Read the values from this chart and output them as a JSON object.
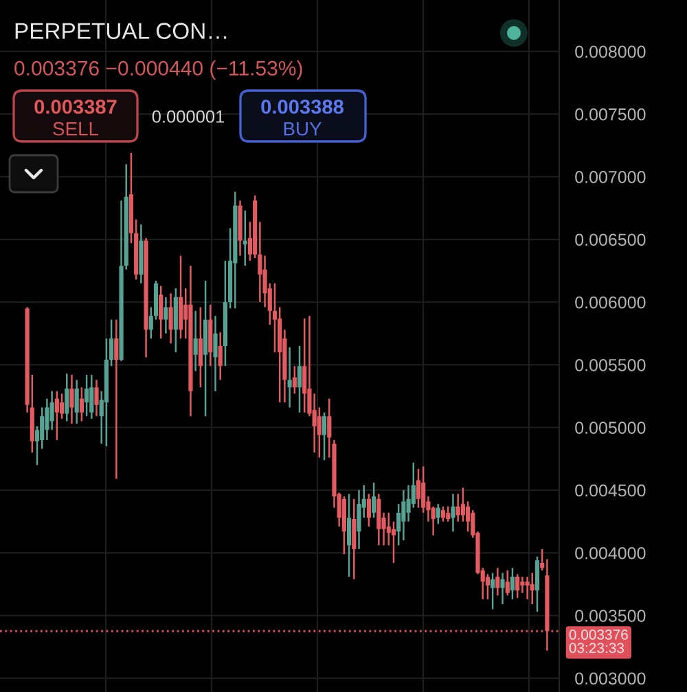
{
  "chart_data": {
    "type": "candlestick",
    "title": "PERPETUAL CON…",
    "subtitle": "0.003376 −0.000440 (−11.53%)",
    "annotations": [
      "0.003387",
      "SELL",
      "0.000001",
      "0.003388",
      "BUY"
    ],
    "categories": [
      null,
      null,
      null,
      null,
      null,
      null,
      null,
      null,
      null,
      null,
      null,
      null,
      null,
      null,
      null,
      null,
      null,
      null,
      null,
      null,
      null,
      null,
      null,
      null,
      null,
      null,
      null,
      null,
      null,
      null,
      null,
      null,
      null,
      null,
      null,
      null,
      null,
      null,
      null,
      null,
      null,
      null,
      null,
      null,
      null,
      null,
      null,
      null,
      null,
      null,
      null,
      null,
      null,
      null,
      null,
      null,
      null,
      null,
      null,
      null,
      null,
      null,
      null,
      null,
      null,
      null,
      null,
      null,
      null,
      null,
      null,
      null,
      null,
      null,
      null,
      null,
      null,
      null,
      null,
      null,
      null,
      null,
      null,
      null,
      null,
      null,
      null,
      null,
      null,
      null,
      null,
      null,
      null,
      null,
      null,
      null,
      null,
      null,
      null,
      null,
      null,
      null,
      null,
      null,
      null,
      null
    ],
    "ohlc": [
      [
        0.00595,
        0.00596,
        0.00512,
        0.00518
      ],
      [
        0.00516,
        0.00542,
        0.0048,
        0.00489
      ],
      [
        0.00489,
        0.00501,
        0.0047,
        0.00498
      ],
      [
        0.0049,
        0.00516,
        0.00483,
        0.00509
      ],
      [
        0.00498,
        0.00523,
        0.0049,
        0.00516
      ],
      [
        0.00505,
        0.00529,
        0.00498,
        0.0052
      ],
      [
        0.00523,
        0.00529,
        0.0049,
        0.00512
      ],
      [
        0.0052,
        0.00527,
        0.00507,
        0.00511
      ],
      [
        0.00511,
        0.00543,
        0.00505,
        0.00531
      ],
      [
        0.00531,
        0.00542,
        0.00503,
        0.00516
      ],
      [
        0.00512,
        0.00538,
        0.00503,
        0.00531
      ],
      [
        0.00523,
        0.00532,
        0.00505,
        0.00512
      ],
      [
        0.0052,
        0.00542,
        0.00509,
        0.00531
      ],
      [
        0.00512,
        0.00542,
        0.00507,
        0.00532
      ],
      [
        0.00532,
        0.00538,
        0.00509,
        0.00518
      ],
      [
        0.00509,
        0.00529,
        0.00487,
        0.00522
      ],
      [
        0.0052,
        0.00571,
        0.00485,
        0.00554
      ],
      [
        0.00554,
        0.00586,
        0.00549,
        0.00571
      ],
      [
        0.00571,
        0.00586,
        0.00459,
        0.00554
      ],
      [
        0.00554,
        0.00681,
        0.00553,
        0.00629
      ],
      [
        0.00629,
        0.0071,
        0.00626,
        0.00684
      ],
      [
        0.00686,
        0.00719,
        0.00647,
        0.00655
      ],
      [
        0.00655,
        0.00666,
        0.00618,
        0.00622
      ],
      [
        0.00622,
        0.00662,
        0.00615,
        0.00649
      ],
      [
        0.00649,
        0.00651,
        0.00556,
        0.00578
      ],
      [
        0.00578,
        0.00596,
        0.00571,
        0.00589
      ],
      [
        0.00589,
        0.00617,
        0.00586,
        0.00615
      ],
      [
        0.00606,
        0.00613,
        0.00571,
        0.00586
      ],
      [
        0.00586,
        0.00604,
        0.00575,
        0.00596
      ],
      [
        0.00596,
        0.00607,
        0.00567,
        0.00578
      ],
      [
        0.00578,
        0.00611,
        0.0056,
        0.00604
      ],
      [
        0.00604,
        0.00637,
        0.00571,
        0.00578
      ],
      [
        0.00598,
        0.00611,
        0.00571,
        0.00586
      ],
      [
        0.00598,
        0.00629,
        0.00509,
        0.00529
      ],
      [
        0.00558,
        0.00593,
        0.00545,
        0.00571
      ],
      [
        0.00571,
        0.00596,
        0.00532,
        0.00549
      ],
      [
        0.00558,
        0.00617,
        0.00509,
        0.00586
      ],
      [
        0.00586,
        0.00598,
        0.00549,
        0.0056
      ],
      [
        0.00556,
        0.00589,
        0.00529,
        0.00575
      ],
      [
        0.00565,
        0.00576,
        0.00538,
        0.00549
      ],
      [
        0.00565,
        0.00633,
        0.00549,
        0.006
      ],
      [
        0.006,
        0.00659,
        0.00595,
        0.00633
      ],
      [
        0.00631,
        0.00688,
        0.00595,
        0.00677
      ],
      [
        0.00677,
        0.00681,
        0.00637,
        0.00649
      ],
      [
        0.00646,
        0.00673,
        0.00629,
        0.00649
      ],
      [
        0.00651,
        0.00664,
        0.00633,
        0.00638
      ],
      [
        0.00681,
        0.00685,
        0.00635,
        0.00638
      ],
      [
        0.00638,
        0.00664,
        0.006,
        0.00622
      ],
      [
        0.00626,
        0.00637,
        0.00596,
        0.00607
      ],
      [
        0.00611,
        0.00615,
        0.00582,
        0.00593
      ],
      [
        0.00593,
        0.00615,
        0.0056,
        0.00586
      ],
      [
        0.00587,
        0.00596,
        0.0052,
        0.0056
      ],
      [
        0.00571,
        0.00578,
        0.0052,
        0.00538
      ],
      [
        0.00532,
        0.00564,
        0.00516,
        0.00538
      ],
      [
        0.0054,
        0.00549,
        0.00527,
        0.00532
      ],
      [
        0.00532,
        0.00565,
        0.00512,
        0.00549
      ],
      [
        0.00549,
        0.00587,
        0.00512,
        0.00527
      ],
      [
        0.00531,
        0.00589,
        0.00509,
        0.00511
      ],
      [
        0.00514,
        0.00527,
        0.0048,
        0.00501
      ],
      [
        0.00509,
        0.00516,
        0.00476,
        0.00494
      ],
      [
        0.00494,
        0.00512,
        0.00474,
        0.00509
      ],
      [
        0.00509,
        0.00523,
        0.00476,
        0.00492
      ],
      [
        0.00487,
        0.0049,
        0.00436,
        0.00445
      ],
      [
        0.00447,
        0.00448,
        0.00421,
        0.00428
      ],
      [
        0.00443,
        0.00445,
        0.00399,
        0.00417
      ],
      [
        0.00406,
        0.00447,
        0.00381,
        0.00428
      ],
      [
        0.00427,
        0.00443,
        0.00379,
        0.00403
      ],
      [
        0.00417,
        0.0045,
        0.00403,
        0.00439
      ],
      [
        0.00436,
        0.00454,
        0.00428,
        0.00443
      ],
      [
        0.00443,
        0.00447,
        0.00421,
        0.00428
      ],
      [
        0.00432,
        0.00456,
        0.00428,
        0.00445
      ],
      [
        0.00443,
        0.00447,
        0.00406,
        0.00419
      ],
      [
        0.00428,
        0.00432,
        0.00406,
        0.00419
      ],
      [
        0.00421,
        0.00432,
        0.00406,
        0.00416
      ],
      [
        0.00419,
        0.00425,
        0.00392,
        0.00414
      ],
      [
        0.00417,
        0.00439,
        0.00406,
        0.00432
      ],
      [
        0.00425,
        0.0045,
        0.0041,
        0.00441
      ],
      [
        0.00432,
        0.00454,
        0.00425,
        0.00443
      ],
      [
        0.00439,
        0.00472,
        0.00436,
        0.00454
      ],
      [
        0.00458,
        0.00467,
        0.00436,
        0.00443
      ],
      [
        0.00456,
        0.00469,
        0.00432,
        0.00436
      ],
      [
        0.00441,
        0.00445,
        0.00425,
        0.00434
      ],
      [
        0.00436,
        0.00437,
        0.00414,
        0.00427
      ],
      [
        0.00428,
        0.00439,
        0.00423,
        0.00436
      ],
      [
        0.00434,
        0.00437,
        0.00425,
        0.00428
      ],
      [
        0.00432,
        0.00437,
        0.00425,
        0.00427
      ],
      [
        0.00428,
        0.00447,
        0.00417,
        0.00437
      ],
      [
        0.00437,
        0.00447,
        0.00425,
        0.0043
      ],
      [
        0.00439,
        0.00452,
        0.00425,
        0.0043
      ],
      [
        0.00437,
        0.00441,
        0.00417,
        0.00425
      ],
      [
        0.00432,
        0.00434,
        0.00412,
        0.00414
      ],
      [
        0.00416,
        0.00417,
        0.00383,
        0.00384
      ],
      [
        0.00386,
        0.00388,
        0.00363,
        0.00377
      ],
      [
        0.00381,
        0.00383,
        0.00363,
        0.00374
      ],
      [
        0.00372,
        0.00384,
        0.00355,
        0.00379
      ],
      [
        0.00381,
        0.00388,
        0.00366,
        0.00372
      ],
      [
        0.00372,
        0.00384,
        0.00359,
        0.00379
      ],
      [
        0.00377,
        0.00386,
        0.00366,
        0.00368
      ],
      [
        0.0037,
        0.00388,
        0.00363,
        0.00381
      ],
      [
        0.00381,
        0.00383,
        0.00364,
        0.0037
      ],
      [
        0.00377,
        0.00381,
        0.00368,
        0.00374
      ],
      [
        0.00377,
        0.00381,
        0.00363,
        0.00374
      ],
      [
        0.00375,
        0.00384,
        0.00359,
        0.0037
      ],
      [
        0.0037,
        0.00397,
        0.00353,
        0.00394
      ],
      [
        0.00392,
        0.00403,
        0.00386,
        0.00388
      ],
      [
        0.00382,
        0.00395,
        0.00322,
        0.003376
      ]
    ],
    "colors": [
      "#e25b60",
      "#e25b60",
      "#57a293",
      "#57a293",
      "#57a293",
      "#57a293",
      "#e25b60",
      "#e25b60",
      "#57a293",
      "#e25b60",
      "#57a293",
      "#e25b60",
      "#57a293",
      "#57a293",
      "#e25b60",
      "#57a293",
      "#57a293",
      "#57a293",
      "#e25b60",
      "#57a293",
      "#57a293",
      "#e25b60",
      "#e25b60",
      "#57a293",
      "#e25b60",
      "#57a293",
      "#57a293",
      "#e25b60",
      "#57a293",
      "#e25b60",
      "#57a293",
      "#e25b60",
      "#e25b60",
      "#e25b60",
      "#57a293",
      "#e25b60",
      "#57a293",
      "#e25b60",
      "#57a293",
      "#e25b60",
      "#57a293",
      "#57a293",
      "#57a293",
      "#e25b60",
      "#57a293",
      "#e25b60",
      "#e25b60",
      "#e25b60",
      "#e25b60",
      "#e25b60",
      "#e25b60",
      "#e25b60",
      "#e25b60",
      "#57a293",
      "#e25b60",
      "#57a293",
      "#e25b60",
      "#e25b60",
      "#e25b60",
      "#e25b60",
      "#57a293",
      "#e25b60",
      "#e25b60",
      "#e25b60",
      "#e25b60",
      "#57a293",
      "#e25b60",
      "#57a293",
      "#57a293",
      "#e25b60",
      "#57a293",
      "#e25b60",
      "#e25b60",
      "#e25b60",
      "#e25b60",
      "#57a293",
      "#57a293",
      "#57a293",
      "#57a293",
      "#e25b60",
      "#e25b60",
      "#e25b60",
      "#e25b60",
      "#57a293",
      "#e25b60",
      "#e25b60",
      "#57a293",
      "#e25b60",
      "#e25b60",
      "#e25b60",
      "#e25b60",
      "#e25b60",
      "#e25b60",
      "#e25b60",
      "#57a293",
      "#e25b60",
      "#57a293",
      "#e25b60",
      "#57a293",
      "#e25b60",
      "#e25b60",
      "#e25b60",
      "#e25b60",
      "#57a293",
      "#e25b60",
      "#e25b60"
    ],
    "ylim": [
      0.00289,
      0.00841
    ],
    "yticks": [
      {
        "value": 0.003,
        "label": "0.003000"
      },
      {
        "value": 0.0035,
        "label": "0.003500"
      },
      {
        "value": 0.004,
        "label": "0.004000"
      },
      {
        "value": 0.0045,
        "label": "0.004500"
      },
      {
        "value": 0.005,
        "label": "0.005000"
      },
      {
        "value": 0.0055,
        "label": "0.005500"
      },
      {
        "value": 0.006,
        "label": "0.006000"
      },
      {
        "value": 0.0065,
        "label": "0.006500"
      },
      {
        "value": 0.007,
        "label": "0.007000"
      },
      {
        "value": 0.0075,
        "label": "0.007500"
      },
      {
        "value": 0.008,
        "label": "0.008000"
      }
    ],
    "grid": true,
    "tick_labels": "y",
    "ref_lines": [
      {
        "axis": "y",
        "value": 0.003376,
        "label": "0.003376\n03:23:33",
        "color": "#e0505a",
        "line_style": "dotted"
      }
    ]
  }
}
